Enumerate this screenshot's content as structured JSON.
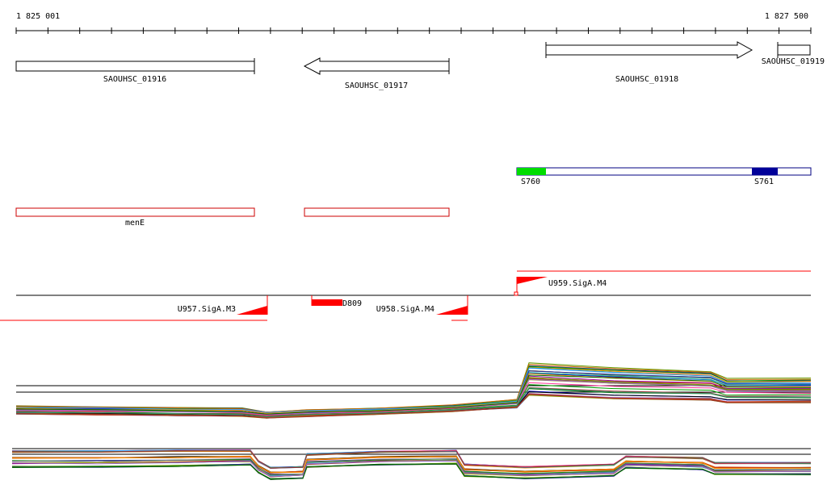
{
  "ruler": {
    "start_label": "1 825 001",
    "end_label": "1 827 500",
    "start": 1825001,
    "end": 1827500
  },
  "genes": [
    {
      "label": "SAOUHSC_01916",
      "strand": "none"
    },
    {
      "label": "SAOUHSC_01917",
      "strand": "minus"
    },
    {
      "label": "SAOUHSC_01918",
      "strand": "plus"
    },
    {
      "label": "SAOUHSC_01919",
      "strand": "none"
    }
  ],
  "segments": [
    {
      "label": "S760",
      "color": "#00dd00"
    },
    {
      "label": "S761",
      "color": "#000099"
    }
  ],
  "features": [
    {
      "label": "menE"
    }
  ],
  "promoters": [
    {
      "label": "U959.SigA.M4",
      "strand": "plus"
    },
    {
      "label": "U957.SigA.M3",
      "strand": "minus"
    },
    {
      "label": "U958.SigA.M4",
      "strand": "minus"
    },
    {
      "label": "D809",
      "strand": "minus"
    }
  ],
  "colors": {
    "feature": "#cc0000",
    "promoter": "#ff0000",
    "line": "#000000"
  }
}
